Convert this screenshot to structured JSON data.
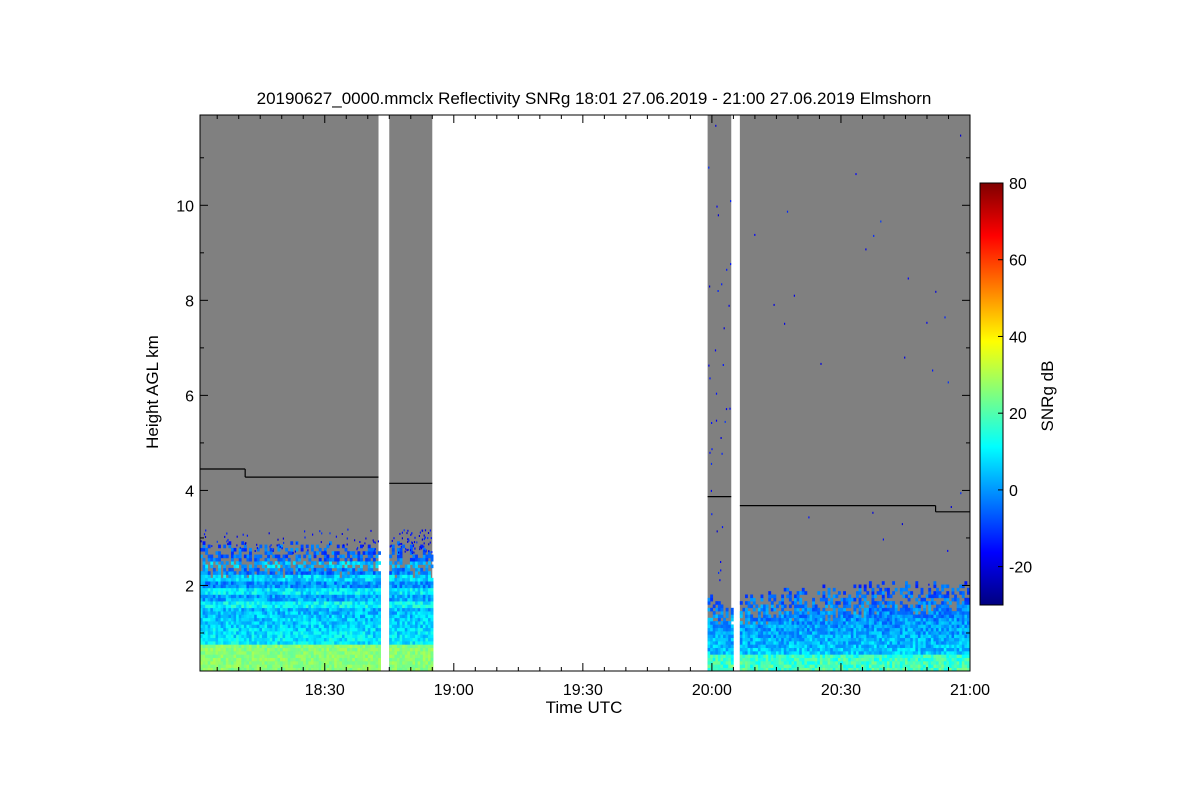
{
  "chart_data": {
    "type": "heatmap",
    "title": "20190627_0000.mmclx Reflectivity SNRg   18:01 27.06.2019 - 21:00 27.06.2019 Elmshorn",
    "xlabel": "Time UTC",
    "ylabel": "Height AGL km",
    "xlim_min": [
      1081,
      1260
    ],
    "ylim_km": [
      0.2,
      11.9
    ],
    "x_ticks": [
      {
        "min": 1110,
        "label": "18:30"
      },
      {
        "min": 1140,
        "label": "19:00"
      },
      {
        "min": 1170,
        "label": "19:30"
      },
      {
        "min": 1200,
        "label": "20:00"
      },
      {
        "min": 1230,
        "label": "20:30"
      },
      {
        "min": 1260,
        "label": "21:00"
      }
    ],
    "y_ticks": [
      {
        "km": 2,
        "label": "2"
      },
      {
        "km": 4,
        "label": "4"
      },
      {
        "km": 6,
        "label": "6"
      },
      {
        "km": 8,
        "label": "8"
      },
      {
        "km": 10,
        "label": "10"
      }
    ],
    "colorbar": {
      "label": "SNRg dB",
      "range": [
        -30,
        80
      ],
      "ticks": [
        {
          "v": -20,
          "label": "-20"
        },
        {
          "v": 0,
          "label": "0"
        },
        {
          "v": 20,
          "label": "20"
        },
        {
          "v": 40,
          "label": "40"
        },
        {
          "v": 60,
          "label": "60"
        },
        {
          "v": 80,
          "label": "80"
        }
      ]
    },
    "data_segments_min": [
      [
        1081,
        1122.5
      ],
      [
        1125,
        1135
      ],
      [
        1199,
        1204.5
      ],
      [
        1206.5,
        1260
      ]
    ],
    "echo_top_km": [
      {
        "from": 1081,
        "to": 1091.5,
        "km": 4.45
      },
      {
        "from": 1091.5,
        "to": 1122.5,
        "km": 4.28
      },
      {
        "from": 1125,
        "to": 1135,
        "km": 4.15
      },
      {
        "from": 1199,
        "to": 1204.5,
        "km": 3.87
      },
      {
        "from": 1206.5,
        "to": 1252,
        "km": 3.68
      },
      {
        "from": 1252,
        "to": 1260,
        "km": 3.55
      }
    ],
    "colors": {
      "no_signal": "#808080",
      "colormap": [
        "#00007f",
        "#0000ff",
        "#007fff",
        "#00ffff",
        "#7fff7f",
        "#ffff00",
        "#ff7f00",
        "#ff0000",
        "#7f0000"
      ]
    }
  }
}
